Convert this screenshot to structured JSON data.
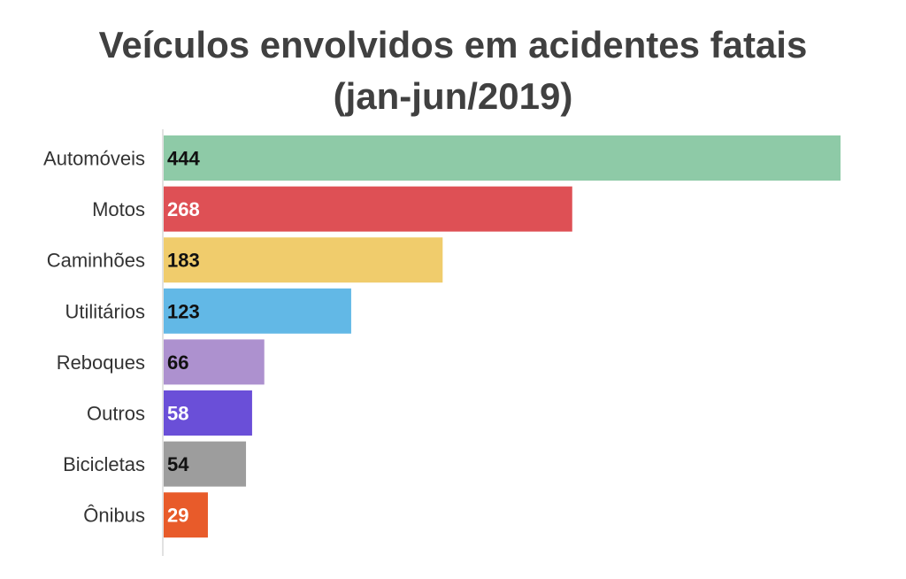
{
  "chart_data": {
    "type": "bar",
    "orientation": "horizontal",
    "title_line1": "Veículos envolvidos em acidentes fatais",
    "title_line2": "(jan-jun/2019)",
    "categories": [
      "Automóveis",
      "Motos",
      "Caminhões",
      "Utilitários",
      "Reboques",
      "Outros",
      "Bicicletas",
      "Ônibus"
    ],
    "values": [
      444,
      268,
      183,
      123,
      66,
      58,
      54,
      29
    ],
    "colors": [
      "#8ecaa7",
      "#de5055",
      "#f0cc6c",
      "#62b8e6",
      "#ad91cf",
      "#6a4fd8",
      "#9d9d9d",
      "#e85b2a"
    ],
    "value_label_colors": [
      "#111111",
      "#ffffff",
      "#111111",
      "#111111",
      "#111111",
      "#ffffff",
      "#111111",
      "#ffffff"
    ],
    "xlim": [
      0,
      444
    ],
    "legend": "none",
    "grid": false
  }
}
